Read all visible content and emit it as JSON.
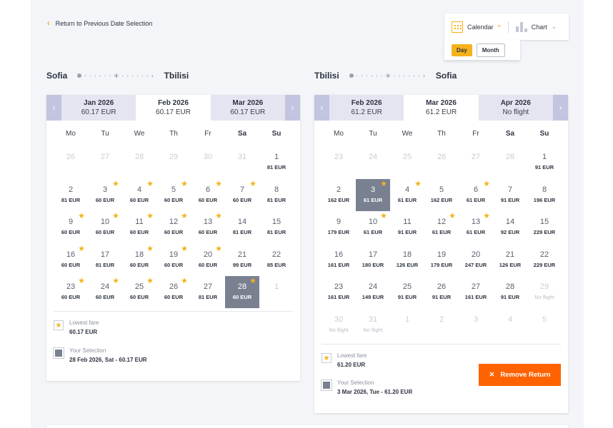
{
  "header": {
    "back_label": "Return to Previous Date Selection",
    "view_options": [
      {
        "label": "Calendar",
        "icon": "calendar-icon",
        "active": true
      },
      {
        "label": "Chart",
        "icon": "bar-chart-icon",
        "active": false
      }
    ],
    "granularity": [
      {
        "label": "Day",
        "active": true
      },
      {
        "label": "Month",
        "active": false
      }
    ]
  },
  "weekdays": [
    "Mo",
    "Tu",
    "We",
    "Th",
    "Fr",
    "Sa",
    "Su"
  ],
  "outbound": {
    "from": "Sofia",
    "to": "Tbilisi",
    "months": [
      {
        "name": "Jan 2026",
        "price": "60.17 EUR",
        "active": false
      },
      {
        "name": "Feb 2026",
        "price": "60.17 EUR",
        "active": true
      },
      {
        "name": "Mar 2026",
        "price": "60.17 EUR",
        "active": false
      }
    ],
    "weeks": [
      [
        {
          "d": "26",
          "m": true
        },
        {
          "d": "27",
          "m": true
        },
        {
          "d": "28",
          "m": true
        },
        {
          "d": "29",
          "m": true
        },
        {
          "d": "30",
          "m": true
        },
        {
          "d": "31",
          "m": true
        },
        {
          "d": "1",
          "p": "81 EUR"
        }
      ],
      [
        {
          "d": "2",
          "p": "81 EUR"
        },
        {
          "d": "3",
          "p": "60 EUR",
          "s": true
        },
        {
          "d": "4",
          "p": "60 EUR",
          "s": true
        },
        {
          "d": "5",
          "p": "60 EUR",
          "s": true
        },
        {
          "d": "6",
          "p": "60 EUR",
          "s": true
        },
        {
          "d": "7",
          "p": "60 EUR",
          "s": true
        },
        {
          "d": "8",
          "p": "81 EUR"
        }
      ],
      [
        {
          "d": "9",
          "p": "60 EUR",
          "s": true
        },
        {
          "d": "10",
          "p": "60 EUR",
          "s": true
        },
        {
          "d": "11",
          "p": "60 EUR",
          "s": true
        },
        {
          "d": "12",
          "p": "60 EUR",
          "s": true
        },
        {
          "d": "13",
          "p": "60 EUR",
          "s": true
        },
        {
          "d": "14",
          "p": "81 EUR"
        },
        {
          "d": "15",
          "p": "81 EUR"
        }
      ],
      [
        {
          "d": "16",
          "p": "60 EUR",
          "s": true
        },
        {
          "d": "17",
          "p": "81 EUR"
        },
        {
          "d": "18",
          "p": "60 EUR",
          "s": true
        },
        {
          "d": "19",
          "p": "60 EUR",
          "s": true
        },
        {
          "d": "20",
          "p": "60 EUR",
          "s": true
        },
        {
          "d": "21",
          "p": "99 EUR"
        },
        {
          "d": "22",
          "p": "85 EUR"
        }
      ],
      [
        {
          "d": "23",
          "p": "60 EUR",
          "s": true
        },
        {
          "d": "24",
          "p": "60 EUR",
          "s": true
        },
        {
          "d": "25",
          "p": "60 EUR",
          "s": true
        },
        {
          "d": "26",
          "p": "60 EUR",
          "s": true
        },
        {
          "d": "27",
          "p": "81 EUR"
        },
        {
          "d": "28",
          "p": "60 EUR",
          "s": true,
          "sel": true
        },
        {
          "d": "1",
          "m": true
        }
      ]
    ],
    "legend": {
      "lowest_title": "Lowest fare",
      "lowest_value": "60.17 EUR",
      "selection_title": "Your Selection",
      "selection_value": "28 Feb 2026, Sat - 60.17 EUR"
    }
  },
  "return": {
    "from": "Tbilisi",
    "to": "Sofia",
    "months": [
      {
        "name": "Feb 2026",
        "price": "61.2 EUR",
        "active": false
      },
      {
        "name": "Mar 2026",
        "price": "61.2 EUR",
        "active": true
      },
      {
        "name": "Apr 2026",
        "price": "No flight",
        "active": false
      }
    ],
    "weeks": [
      [
        {
          "d": "23",
          "m": true
        },
        {
          "d": "24",
          "m": true
        },
        {
          "d": "25",
          "m": true
        },
        {
          "d": "26",
          "m": true
        },
        {
          "d": "27",
          "m": true
        },
        {
          "d": "28",
          "m": true
        },
        {
          "d": "1",
          "p": "91 EUR"
        }
      ],
      [
        {
          "d": "2",
          "p": "162 EUR"
        },
        {
          "d": "3",
          "p": "61 EUR",
          "s": true,
          "sel": true
        },
        {
          "d": "4",
          "p": "61 EUR",
          "s": true
        },
        {
          "d": "5",
          "p": "162 EUR"
        },
        {
          "d": "6",
          "p": "61 EUR",
          "s": true
        },
        {
          "d": "7",
          "p": "91 EUR"
        },
        {
          "d": "8",
          "p": "196 EUR"
        }
      ],
      [
        {
          "d": "9",
          "p": "179 EUR"
        },
        {
          "d": "10",
          "p": "61 EUR",
          "s": true
        },
        {
          "d": "11",
          "p": "91 EUR"
        },
        {
          "d": "12",
          "p": "61 EUR",
          "s": true
        },
        {
          "d": "13",
          "p": "61 EUR",
          "s": true
        },
        {
          "d": "14",
          "p": "92 EUR"
        },
        {
          "d": "15",
          "p": "229 EUR"
        }
      ],
      [
        {
          "d": "16",
          "p": "161 EUR"
        },
        {
          "d": "17",
          "p": "180 EUR"
        },
        {
          "d": "18",
          "p": "126 EUR"
        },
        {
          "d": "19",
          "p": "179 EUR"
        },
        {
          "d": "20",
          "p": "247 EUR"
        },
        {
          "d": "21",
          "p": "126 EUR"
        },
        {
          "d": "22",
          "p": "229 EUR"
        }
      ],
      [
        {
          "d": "23",
          "p": "161 EUR"
        },
        {
          "d": "24",
          "p": "149 EUR"
        },
        {
          "d": "25",
          "p": "91 EUR"
        },
        {
          "d": "26",
          "p": "91 EUR"
        },
        {
          "d": "27",
          "p": "161 EUR"
        },
        {
          "d": "28",
          "p": "91 EUR"
        },
        {
          "d": "29",
          "p": "No flight",
          "nf": true
        }
      ],
      [
        {
          "d": "30",
          "p": "No flight",
          "nf": true
        },
        {
          "d": "31",
          "p": "No flight",
          "nf": true
        },
        {
          "d": "1",
          "m": true
        },
        {
          "d": "2",
          "m": true
        },
        {
          "d": "3",
          "m": true
        },
        {
          "d": "4",
          "m": true
        },
        {
          "d": "5",
          "m": true
        }
      ]
    ],
    "legend": {
      "lowest_title": "Lowest fare",
      "lowest_value": "61.20 EUR",
      "selection_title": "Your Selection",
      "selection_value": "3 Mar 2026, Tue - 61.20 EUR"
    },
    "remove_label": "Remove Return"
  }
}
